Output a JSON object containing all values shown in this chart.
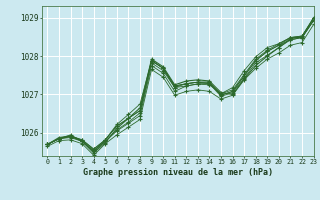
{
  "title": "Graphe pression niveau de la mer (hPa)",
  "bg_color": "#cce9f0",
  "grid_color": "#ffffff",
  "line_color": "#2d6a2d",
  "xlim": [
    -0.5,
    23
  ],
  "ylim": [
    1025.4,
    1029.3
  ],
  "yticks": [
    1026,
    1027,
    1028,
    1029
  ],
  "xticks": [
    0,
    1,
    2,
    3,
    4,
    5,
    6,
    7,
    8,
    9,
    10,
    11,
    12,
    13,
    14,
    15,
    16,
    17,
    18,
    19,
    20,
    21,
    22,
    23
  ],
  "series": [
    [
      1025.7,
      1025.85,
      1025.9,
      1025.8,
      1025.55,
      1025.78,
      1026.05,
      1026.25,
      1026.45,
      1027.75,
      1027.55,
      1027.08,
      1027.22,
      1027.27,
      1027.25,
      1027.02,
      1027.12,
      1027.52,
      1027.92,
      1028.15,
      1028.32,
      1028.48,
      1028.52,
      1028.98
    ],
    [
      1025.7,
      1025.85,
      1025.88,
      1025.78,
      1025.52,
      1025.78,
      1026.08,
      1026.28,
      1026.52,
      1027.82,
      1027.62,
      1027.18,
      1027.22,
      1027.28,
      1027.28,
      1026.95,
      1027.05,
      1027.42,
      1027.82,
      1028.02,
      1028.22,
      1028.42,
      1028.48,
      1028.92
    ],
    [
      1025.7,
      1025.85,
      1025.92,
      1025.82,
      1025.58,
      1025.82,
      1026.18,
      1026.38,
      1026.58,
      1027.88,
      1027.68,
      1027.22,
      1027.28,
      1027.32,
      1027.28,
      1027.02,
      1027.18,
      1027.62,
      1027.98,
      1028.22,
      1028.32,
      1028.48,
      1028.52,
      1028.98
    ],
    [
      1025.7,
      1025.85,
      1025.92,
      1025.82,
      1025.58,
      1025.82,
      1026.18,
      1026.38,
      1026.58,
      1027.88,
      1027.68,
      1027.22,
      1027.28,
      1027.32,
      1027.32,
      1026.98,
      1027.08,
      1027.48,
      1027.88,
      1028.12,
      1028.28,
      1028.48,
      1028.48,
      1028.93
    ]
  ],
  "high_series": [
    1025.7,
    1025.85,
    1025.95,
    1025.78,
    1025.52,
    1025.82,
    1026.22,
    1026.48,
    1026.75,
    1027.88,
    1027.68,
    1027.18,
    1027.28,
    1027.32,
    1027.32,
    1026.98,
    1027.08,
    1027.48,
    1027.88,
    1028.12,
    1028.28,
    1028.42,
    1028.48,
    1028.93
  ],
  "spike_series": [
    1025.7,
    1025.88,
    1025.92,
    1025.78,
    1025.48,
    1025.75,
    1026.12,
    1026.38,
    1026.65,
    1027.92,
    1027.72,
    1027.25,
    1027.35,
    1027.38,
    1027.35,
    1027.05,
    1027.0,
    1027.4,
    1027.75,
    1028.0,
    1028.22,
    1028.45,
    1028.5,
    1029.0
  ],
  "low_series": [
    1025.65,
    1025.8,
    1025.82,
    1025.72,
    1025.42,
    1025.72,
    1025.95,
    1026.15,
    1026.35,
    1027.65,
    1027.45,
    1026.98,
    1027.08,
    1027.12,
    1027.08,
    1026.88,
    1026.98,
    1027.38,
    1027.68,
    1027.92,
    1028.08,
    1028.28,
    1028.35,
    1028.82
  ]
}
